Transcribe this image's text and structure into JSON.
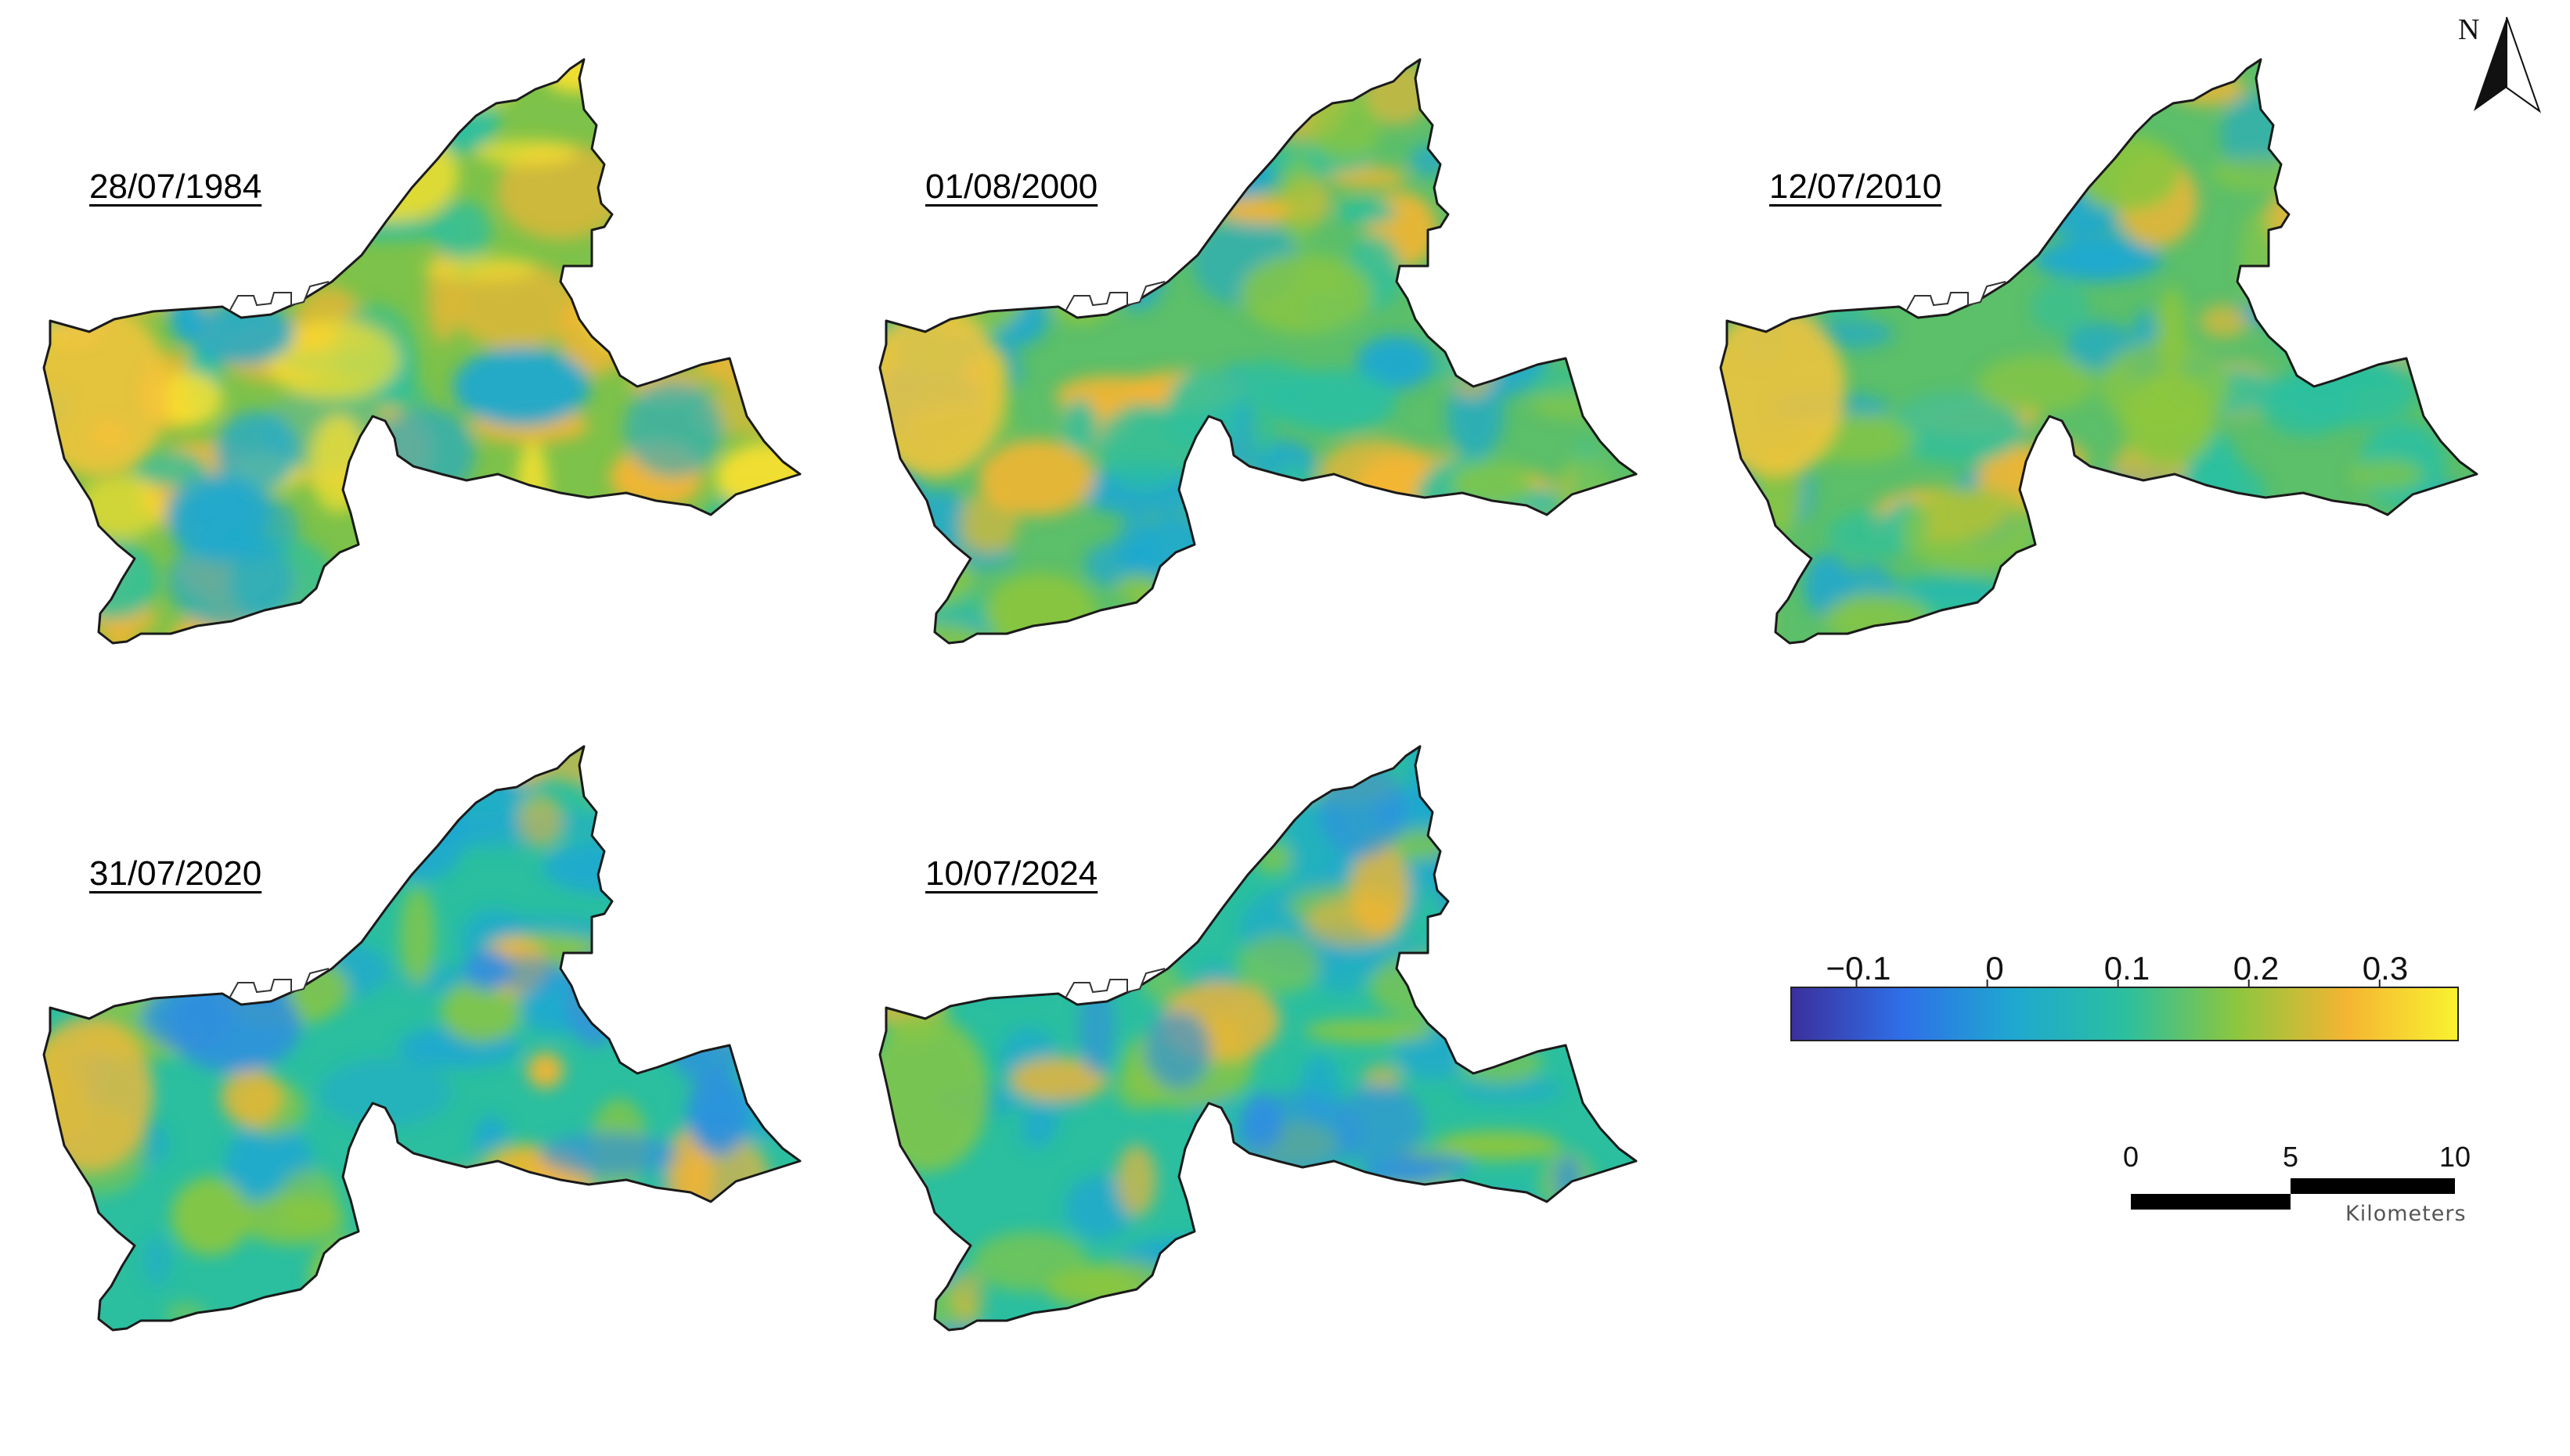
{
  "panels": [
    {
      "date": "28/07/1984",
      "palette": "warm"
    },
    {
      "date": "01/08/2000",
      "palette": "mixed"
    },
    {
      "date": "12/07/2010",
      "palette": "mixed"
    },
    {
      "date": "31/07/2020",
      "palette": "cool"
    },
    {
      "date": "10/07/2024",
      "palette": "cool"
    }
  ],
  "legend": {
    "ticks": [
      {
        "label": "−0.1",
        "value": -0.1
      },
      {
        "label": "0",
        "value": 0
      },
      {
        "label": "0.1",
        "value": 0.1
      },
      {
        "label": "0.2",
        "value": 0.2
      },
      {
        "label": "0.3",
        "value": 0.3
      }
    ],
    "min": -0.15,
    "max": 0.36,
    "colors": [
      "#3b2f9c",
      "#2f6fe8",
      "#1fa8d0",
      "#2bbfa0",
      "#8cc63f",
      "#f4b532",
      "#f9f230"
    ]
  },
  "scale_bar": {
    "labels": [
      "0",
      "5",
      "10"
    ],
    "unit": "Kilometers"
  },
  "north_arrow": {
    "letter": "N",
    "icon": "north-arrow-icon"
  }
}
